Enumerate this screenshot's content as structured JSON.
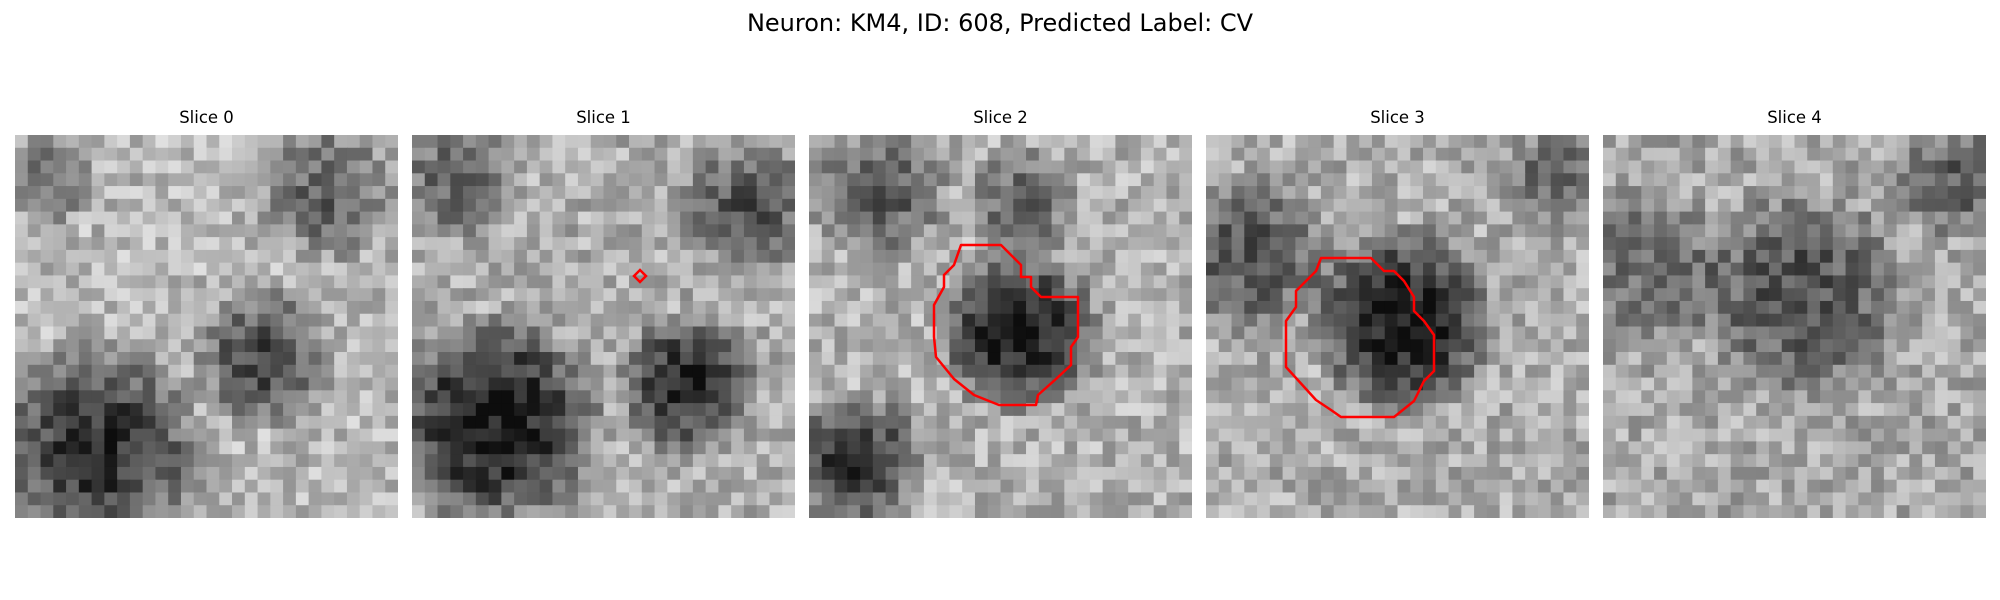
{
  "figure": {
    "title": "Neuron: KM4, ID: 608, Predicted Label: CV"
  },
  "panels": [
    {
      "title": "Slice 0",
      "contour": "none"
    },
    {
      "title": "Slice 1",
      "contour": "small-marker"
    },
    {
      "title": "Slice 2",
      "contour": "outline"
    },
    {
      "title": "Slice 3",
      "contour": "outline"
    },
    {
      "title": "Slice 4",
      "contour": "none"
    }
  ],
  "colors": {
    "contour": "#ff0000",
    "background": "#ffffff"
  }
}
